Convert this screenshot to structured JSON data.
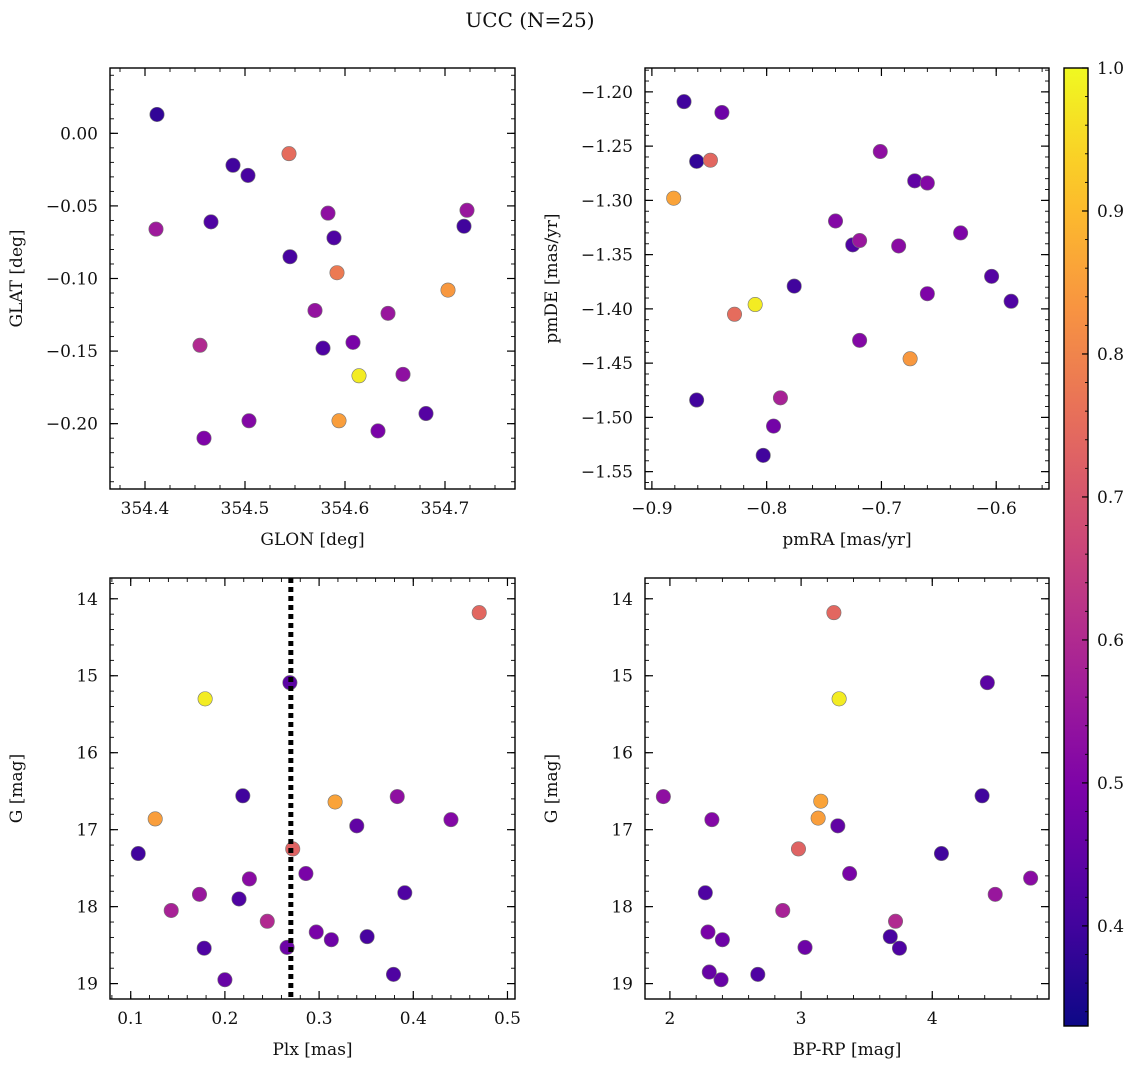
{
  "title": "UCC (N=25)",
  "colorbar": {
    "colormap": "plasma",
    "range": [
      0.33,
      1.0
    ],
    "ticks": [
      0.4,
      0.5,
      0.6,
      0.7,
      0.8,
      0.9,
      1.0
    ],
    "tick_labels": [
      "0.4",
      "0.5",
      "0.6",
      "0.7",
      "0.8",
      "0.9",
      "1.0"
    ]
  },
  "chart_data": [
    {
      "type": "scatter",
      "id": "glon-glat",
      "xlabel": "GLON [deg]",
      "ylabel": "GLAT [deg]",
      "xlim": [
        354.365,
        354.77
      ],
      "ylim": [
        -0.245,
        0.045
      ],
      "yinvert": false,
      "xticks": [
        354.4,
        354.5,
        354.6,
        354.7
      ],
      "xtick_labels": [
        "354.4",
        "354.5",
        "354.6",
        "354.7"
      ],
      "xminor": 0.025,
      "yticks": [
        -0.2,
        -0.15,
        -0.1,
        -0.05,
        0.0
      ],
      "ytick_labels": [
        "−0.20",
        "−0.15",
        "−0.10",
        "−0.05",
        "0.00"
      ],
      "yminor": 0.01,
      "vline": null,
      "points": [
        {
          "x": 354.412,
          "y": 0.013,
          "c": 0.38
        },
        {
          "x": 354.411,
          "y": -0.066,
          "c": 0.56
        },
        {
          "x": 354.466,
          "y": -0.061,
          "c": 0.42
        },
        {
          "x": 354.488,
          "y": -0.022,
          "c": 0.4
        },
        {
          "x": 354.503,
          "y": -0.029,
          "c": 0.41
        },
        {
          "x": 354.544,
          "y": -0.014,
          "c": 0.75
        },
        {
          "x": 354.545,
          "y": -0.085,
          "c": 0.41
        },
        {
          "x": 354.583,
          "y": -0.055,
          "c": 0.53
        },
        {
          "x": 354.589,
          "y": -0.072,
          "c": 0.42
        },
        {
          "x": 354.592,
          "y": -0.096,
          "c": 0.78
        },
        {
          "x": 354.57,
          "y": -0.122,
          "c": 0.54
        },
        {
          "x": 354.578,
          "y": -0.148,
          "c": 0.42
        },
        {
          "x": 354.608,
          "y": -0.144,
          "c": 0.49
        },
        {
          "x": 354.614,
          "y": -0.167,
          "c": 0.98
        },
        {
          "x": 354.643,
          "y": -0.124,
          "c": 0.55
        },
        {
          "x": 354.658,
          "y": -0.166,
          "c": 0.53
        },
        {
          "x": 354.681,
          "y": -0.193,
          "c": 0.43
        },
        {
          "x": 354.703,
          "y": -0.108,
          "c": 0.84
        },
        {
          "x": 354.719,
          "y": -0.064,
          "c": 0.4
        },
        {
          "x": 354.722,
          "y": -0.053,
          "c": 0.55
        },
        {
          "x": 354.455,
          "y": -0.146,
          "c": 0.6
        },
        {
          "x": 354.459,
          "y": -0.21,
          "c": 0.5
        },
        {
          "x": 354.504,
          "y": -0.198,
          "c": 0.51
        },
        {
          "x": 354.594,
          "y": -0.198,
          "c": 0.85
        },
        {
          "x": 354.633,
          "y": -0.205,
          "c": 0.49
        }
      ]
    },
    {
      "type": "scatter",
      "id": "pmra-pmde",
      "xlabel": "pmRA [mas/yr]",
      "ylabel": "pmDE [mas/yr]",
      "xlim": [
        -0.906,
        -0.554
      ],
      "ylim": [
        -1.566,
        -1.178
      ],
      "yinvert": false,
      "xticks": [
        -0.9,
        -0.8,
        -0.7,
        -0.6
      ],
      "xtick_labels": [
        "−0.9",
        "−0.8",
        "−0.7",
        "−0.6"
      ],
      "xminor": 0.02,
      "yticks": [
        -1.55,
        -1.5,
        -1.45,
        -1.4,
        -1.35,
        -1.3,
        -1.25,
        -1.2
      ],
      "ytick_labels": [
        "−1.55",
        "−1.50",
        "−1.45",
        "−1.40",
        "−1.35",
        "−1.30",
        "−1.25",
        "−1.20"
      ],
      "yminor": 0.01,
      "vline": null,
      "points": [
        {
          "x": -0.872,
          "y": -1.209,
          "c": 0.4
        },
        {
          "x": -0.839,
          "y": -1.219,
          "c": 0.47
        },
        {
          "x": -0.861,
          "y": -1.264,
          "c": 0.38
        },
        {
          "x": -0.849,
          "y": -1.263,
          "c": 0.74
        },
        {
          "x": -0.881,
          "y": -1.298,
          "c": 0.86
        },
        {
          "x": -0.701,
          "y": -1.255,
          "c": 0.53
        },
        {
          "x": -0.671,
          "y": -1.282,
          "c": 0.45
        },
        {
          "x": -0.66,
          "y": -1.284,
          "c": 0.51
        },
        {
          "x": -0.74,
          "y": -1.319,
          "c": 0.51
        },
        {
          "x": -0.725,
          "y": -1.341,
          "c": 0.42
        },
        {
          "x": -0.719,
          "y": -1.337,
          "c": 0.55
        },
        {
          "x": -0.685,
          "y": -1.342,
          "c": 0.52
        },
        {
          "x": -0.631,
          "y": -1.33,
          "c": 0.5
        },
        {
          "x": -0.604,
          "y": -1.37,
          "c": 0.43
        },
        {
          "x": -0.66,
          "y": -1.386,
          "c": 0.5
        },
        {
          "x": -0.587,
          "y": -1.393,
          "c": 0.42
        },
        {
          "x": -0.776,
          "y": -1.379,
          "c": 0.4
        },
        {
          "x": -0.81,
          "y": -1.396,
          "c": 0.98
        },
        {
          "x": -0.828,
          "y": -1.405,
          "c": 0.75
        },
        {
          "x": -0.719,
          "y": -1.429,
          "c": 0.51
        },
        {
          "x": -0.675,
          "y": -1.446,
          "c": 0.84
        },
        {
          "x": -0.861,
          "y": -1.484,
          "c": 0.4
        },
        {
          "x": -0.788,
          "y": -1.482,
          "c": 0.58
        },
        {
          "x": -0.794,
          "y": -1.508,
          "c": 0.48
        },
        {
          "x": -0.803,
          "y": -1.535,
          "c": 0.4
        }
      ]
    },
    {
      "type": "scatter",
      "id": "plx-g",
      "xlabel": "Plx [mas]",
      "ylabel": "G [mag]",
      "xlim": [
        0.078,
        0.508
      ],
      "ylim": [
        19.2,
        13.73
      ],
      "yinvert": true,
      "xticks": [
        0.1,
        0.2,
        0.3,
        0.4,
        0.5
      ],
      "xtick_labels": [
        "0.1",
        "0.2",
        "0.3",
        "0.4",
        "0.5"
      ],
      "xminor": 0.02,
      "yticks": [
        14,
        15,
        16,
        17,
        18,
        19
      ],
      "ytick_labels": [
        "14",
        "15",
        "16",
        "17",
        "18",
        "19"
      ],
      "yminor": 0.2,
      "vline": {
        "x": 0.27,
        "style": "dotted"
      },
      "points": [
        {
          "x": 0.47,
          "y": 14.18,
          "c": 0.74
        },
        {
          "x": 0.179,
          "y": 15.3,
          "c": 0.98
        },
        {
          "x": 0.269,
          "y": 15.09,
          "c": 0.44
        },
        {
          "x": 0.219,
          "y": 16.56,
          "c": 0.4
        },
        {
          "x": 0.126,
          "y": 16.86,
          "c": 0.85
        },
        {
          "x": 0.317,
          "y": 16.64,
          "c": 0.86
        },
        {
          "x": 0.383,
          "y": 16.57,
          "c": 0.53
        },
        {
          "x": 0.34,
          "y": 16.95,
          "c": 0.45
        },
        {
          "x": 0.44,
          "y": 16.87,
          "c": 0.51
        },
        {
          "x": 0.272,
          "y": 17.25,
          "c": 0.73
        },
        {
          "x": 0.108,
          "y": 17.31,
          "c": 0.4
        },
        {
          "x": 0.226,
          "y": 17.64,
          "c": 0.52
        },
        {
          "x": 0.286,
          "y": 17.57,
          "c": 0.49
        },
        {
          "x": 0.173,
          "y": 17.84,
          "c": 0.55
        },
        {
          "x": 0.143,
          "y": 18.05,
          "c": 0.58
        },
        {
          "x": 0.215,
          "y": 17.9,
          "c": 0.42
        },
        {
          "x": 0.391,
          "y": 17.82,
          "c": 0.42
        },
        {
          "x": 0.245,
          "y": 18.19,
          "c": 0.6
        },
        {
          "x": 0.297,
          "y": 18.33,
          "c": 0.49
        },
        {
          "x": 0.313,
          "y": 18.43,
          "c": 0.47
        },
        {
          "x": 0.351,
          "y": 18.39,
          "c": 0.41
        },
        {
          "x": 0.178,
          "y": 18.54,
          "c": 0.42
        },
        {
          "x": 0.266,
          "y": 18.53,
          "c": 0.47
        },
        {
          "x": 0.2,
          "y": 18.95,
          "c": 0.46
        },
        {
          "x": 0.379,
          "y": 18.88,
          "c": 0.42
        }
      ]
    },
    {
      "type": "scatter",
      "id": "bprp-g",
      "xlabel": "BP-RP [mag]",
      "ylabel": "G [mag]",
      "xlim": [
        1.81,
        4.89
      ],
      "ylim": [
        19.2,
        13.73
      ],
      "yinvert": true,
      "xticks": [
        2,
        3,
        4
      ],
      "xtick_labels": [
        "2",
        "3",
        "4"
      ],
      "xminor": 0.2,
      "yticks": [
        14,
        15,
        16,
        17,
        18,
        19
      ],
      "ytick_labels": [
        "14",
        "15",
        "16",
        "17",
        "18",
        "19"
      ],
      "yminor": 0.2,
      "vline": null,
      "points": [
        {
          "x": 3.25,
          "y": 14.18,
          "c": 0.74
        },
        {
          "x": 3.29,
          "y": 15.3,
          "c": 0.98
        },
        {
          "x": 4.42,
          "y": 15.09,
          "c": 0.44
        },
        {
          "x": 1.95,
          "y": 16.57,
          "c": 0.53
        },
        {
          "x": 4.38,
          "y": 16.56,
          "c": 0.4
        },
        {
          "x": 3.15,
          "y": 16.63,
          "c": 0.86
        },
        {
          "x": 3.13,
          "y": 16.85,
          "c": 0.85
        },
        {
          "x": 2.32,
          "y": 16.87,
          "c": 0.51
        },
        {
          "x": 3.28,
          "y": 16.95,
          "c": 0.45
        },
        {
          "x": 2.98,
          "y": 17.25,
          "c": 0.73
        },
        {
          "x": 4.07,
          "y": 17.31,
          "c": 0.4
        },
        {
          "x": 3.37,
          "y": 17.57,
          "c": 0.49
        },
        {
          "x": 4.75,
          "y": 17.63,
          "c": 0.52
        },
        {
          "x": 2.27,
          "y": 17.82,
          "c": 0.42
        },
        {
          "x": 4.48,
          "y": 17.84,
          "c": 0.55
        },
        {
          "x": 2.86,
          "y": 18.05,
          "c": 0.58
        },
        {
          "x": 3.72,
          "y": 18.19,
          "c": 0.6
        },
        {
          "x": 2.29,
          "y": 18.33,
          "c": 0.49
        },
        {
          "x": 2.4,
          "y": 18.43,
          "c": 0.47
        },
        {
          "x": 3.68,
          "y": 18.39,
          "c": 0.41
        },
        {
          "x": 3.03,
          "y": 18.53,
          "c": 0.47
        },
        {
          "x": 3.75,
          "y": 18.54,
          "c": 0.42
        },
        {
          "x": 2.67,
          "y": 18.88,
          "c": 0.42
        },
        {
          "x": 2.39,
          "y": 18.95,
          "c": 0.46
        },
        {
          "x": 2.3,
          "y": 18.85,
          "c": 0.46
        }
      ]
    }
  ]
}
